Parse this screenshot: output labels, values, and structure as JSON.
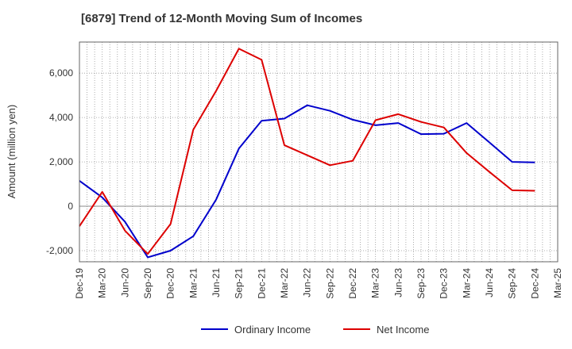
{
  "chart_data": {
    "type": "line",
    "title": "[6879]  Trend of 12-Month Moving Sum of Incomes",
    "xlabel": "",
    "ylabel": "Amount (million yen)",
    "ylim": [
      -2500,
      7400
    ],
    "yticks": [
      -2000,
      0,
      2000,
      4000,
      6000
    ],
    "ytick_labels": [
      "-2,000",
      "0",
      "2,000",
      "4,000",
      "6,000"
    ],
    "categories": [
      "Dec-19",
      "Mar-20",
      "Jun-20",
      "Sep-20",
      "Dec-20",
      "Mar-21",
      "Jun-21",
      "Sep-21",
      "Dec-21",
      "Mar-22",
      "Jun-22",
      "Sep-22",
      "Dec-22",
      "Mar-23",
      "Jun-23",
      "Sep-23",
      "Dec-23",
      "Mar-24",
      "Jun-24",
      "Sep-24",
      "Dec-24",
      "Mar-25"
    ],
    "grid": true,
    "legend_position": "bottom",
    "series": [
      {
        "name": "Ordinary Income",
        "color": "#0000cc",
        "values": [
          1150,
          400,
          -700,
          -2300,
          -2000,
          -1350,
          300,
          2600,
          3850,
          3950,
          4550,
          4300,
          3900,
          3650,
          3750,
          3250,
          3270,
          3750,
          2880,
          2000,
          1980,
          null
        ]
      },
      {
        "name": "Net Income",
        "color": "#dd0000",
        "values": [
          -900,
          650,
          -1100,
          -2150,
          -800,
          3450,
          5200,
          7100,
          6600,
          2750,
          2300,
          1850,
          2050,
          3880,
          4150,
          3800,
          3550,
          2400,
          1550,
          720,
          700,
          null
        ]
      }
    ]
  }
}
